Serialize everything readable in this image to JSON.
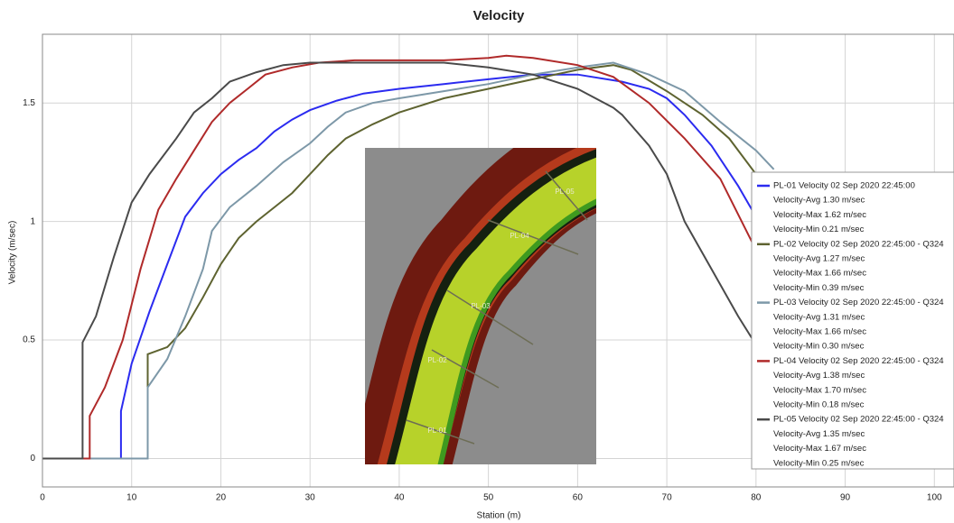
{
  "chart_data": {
    "type": "line",
    "title": "Velocity",
    "x_label": "Station (m)",
    "y_label": "Velocity (m/sec)",
    "xlim": [
      0,
      102.2
    ],
    "ylim": [
      -0.12,
      1.79
    ],
    "xticks": [
      0,
      10,
      20,
      30,
      40,
      50,
      60,
      70,
      80,
      90,
      100
    ],
    "yticks": [
      0,
      0.5,
      1,
      1.5
    ],
    "grid": true,
    "legend": "right",
    "series": [
      {
        "name": "PL-01 Velocity 02 Sep 2020 22:45:00",
        "color": "#2b2bf0",
        "stats": [
          "Velocity-Avg 1.30 m/sec",
          "Velocity-Max 1.62 m/sec",
          "Velocity-Min 0.21 m/sec"
        ],
        "x": [
          0,
          8.8,
          8.8,
          10,
          12,
          14,
          16,
          18,
          20,
          22,
          24,
          26,
          28,
          30,
          33,
          36,
          40,
          45,
          50,
          55,
          60,
          65,
          68,
          70,
          72,
          75,
          78,
          80,
          85,
          88,
          90,
          102
        ],
        "values": [
          0,
          0,
          0.2,
          0.4,
          0.62,
          0.82,
          1.02,
          1.12,
          1.2,
          1.26,
          1.31,
          1.38,
          1.43,
          1.47,
          1.51,
          1.54,
          1.56,
          1.58,
          1.6,
          1.62,
          1.62,
          1.59,
          1.56,
          1.52,
          1.45,
          1.32,
          1.15,
          1.02,
          0.5,
          0.2,
          0,
          0
        ]
      },
      {
        "name": "PL-02 Velocity 02 Sep 2020 22:45:00 - Q324",
        "color": "#5e6330",
        "stats": [
          "Velocity-Avg 1.27 m/sec",
          "Velocity-Max 1.66 m/sec",
          "Velocity-Min 0.39 m/sec"
        ],
        "x": [
          0,
          11.8,
          11.8,
          14,
          16,
          18,
          20,
          22,
          24,
          26,
          28,
          30,
          32,
          34,
          37,
          40,
          45,
          50,
          55,
          60,
          64,
          66,
          70,
          74,
          77,
          80,
          82
        ],
        "values": [
          0,
          0,
          0.44,
          0.47,
          0.55,
          0.68,
          0.82,
          0.93,
          1.0,
          1.06,
          1.12,
          1.2,
          1.28,
          1.35,
          1.41,
          1.46,
          1.52,
          1.56,
          1.6,
          1.64,
          1.66,
          1.64,
          1.55,
          1.45,
          1.35,
          1.2,
          1.05
        ]
      },
      {
        "name": "PL-03 Velocity 02 Sep 2020 22:45:00 - Q324",
        "color": "#7d98a8",
        "stats": [
          "Velocity-Avg 1.31 m/sec",
          "Velocity-Max 1.66 m/sec",
          "Velocity-Min 0.30 m/sec"
        ],
        "x": [
          0,
          11.8,
          11.8,
          14,
          16,
          18,
          19,
          21,
          24,
          27,
          30,
          32,
          34,
          37,
          40,
          45,
          50,
          55,
          60,
          64,
          68,
          72,
          76,
          80,
          82
        ],
        "values": [
          0,
          0,
          0.3,
          0.42,
          0.6,
          0.8,
          0.96,
          1.06,
          1.15,
          1.25,
          1.33,
          1.4,
          1.46,
          1.5,
          1.52,
          1.55,
          1.58,
          1.62,
          1.65,
          1.67,
          1.62,
          1.55,
          1.42,
          1.3,
          1.22
        ]
      },
      {
        "name": "PL-04 Velocity 02 Sep 2020 22:45:00 - Q324",
        "color": "#b02a2a",
        "stats": [
          "Velocity-Avg 1.38 m/sec",
          "Velocity-Max 1.70 m/sec",
          "Velocity-Min 0.18 m/sec"
        ],
        "x": [
          0,
          5.3,
          5.3,
          7,
          9,
          11,
          13,
          15,
          17,
          19,
          21,
          23,
          25,
          28,
          31,
          35,
          40,
          45,
          50,
          52,
          55,
          60,
          64,
          68,
          72,
          76,
          80
        ],
        "values": [
          0,
          0,
          0.18,
          0.3,
          0.5,
          0.8,
          1.05,
          1.18,
          1.3,
          1.42,
          1.5,
          1.56,
          1.62,
          1.65,
          1.67,
          1.68,
          1.68,
          1.68,
          1.69,
          1.7,
          1.69,
          1.66,
          1.61,
          1.5,
          1.35,
          1.18,
          0.88
        ]
      },
      {
        "name": "PL-05 Velocity 02 Sep 2020 22:45:00 - Q324",
        "color": "#4a4a4a",
        "stats": [
          "Velocity-Avg 1.35 m/sec",
          "Velocity-Max 1.67 m/sec",
          "Velocity-Min 0.25 m/sec"
        ],
        "x": [
          0,
          4.5,
          4.5,
          6,
          8,
          10,
          12,
          15,
          17,
          19,
          21,
          24,
          27,
          30,
          35,
          40,
          45,
          50,
          55,
          60,
          64,
          65,
          68,
          70,
          72,
          75,
          78,
          80
        ],
        "values": [
          0,
          0,
          0.49,
          0.6,
          0.85,
          1.08,
          1.2,
          1.35,
          1.46,
          1.52,
          1.59,
          1.63,
          1.66,
          1.67,
          1.67,
          1.67,
          1.67,
          1.65,
          1.62,
          1.56,
          1.48,
          1.45,
          1.32,
          1.2,
          1.0,
          0.8,
          0.6,
          0.48
        ]
      }
    ],
    "inset_labels": [
      "PL-01",
      "PL-02",
      "PL-03",
      "PL-04",
      "PL-05"
    ]
  }
}
